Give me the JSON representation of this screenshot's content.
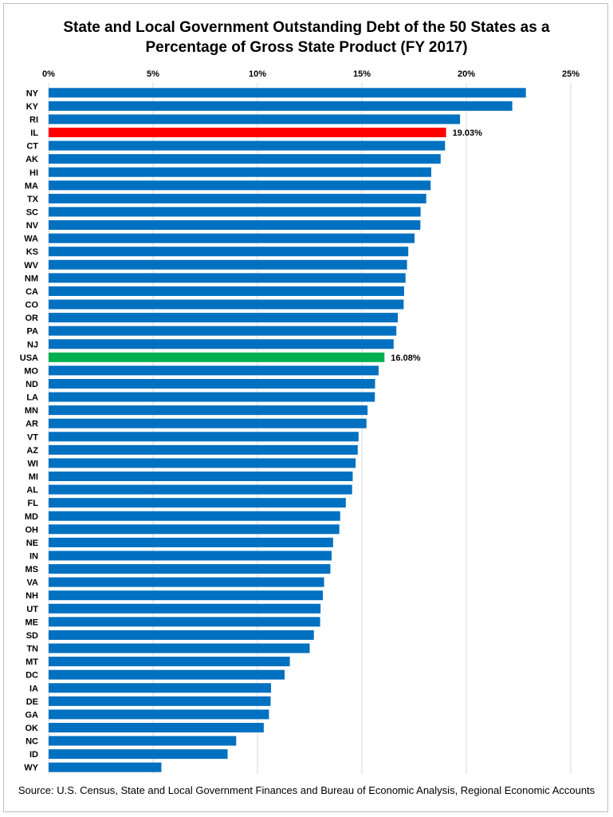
{
  "chart_data": {
    "type": "bar",
    "orientation": "horizontal",
    "title": "State and Local Government Outstanding Debt of the 50 States as a Percentage of Gross State Product (FY 2017)",
    "title_line1": "State and Local Government Outstanding Debt of the 50 States as a",
    "title_line2": "Percentage of Gross State Product (FY 2017)",
    "source": "Source: U.S. Census, State and Local Government Finances and Bureau of Economic Analysis, Regional Economic Accounts",
    "xlim": [
      0,
      25
    ],
    "x_ticks": [
      0,
      5,
      10,
      15,
      20,
      25
    ],
    "x_tick_labels": [
      "0%",
      "5%",
      "10%",
      "15%",
      "20%",
      "25%"
    ],
    "grid": true,
    "default_color": "#0070C0",
    "categories": [
      "NY",
      "KY",
      "RI",
      "IL",
      "CT",
      "AK",
      "HI",
      "MA",
      "TX",
      "SC",
      "NV",
      "WA",
      "KS",
      "WV",
      "NM",
      "CA",
      "CO",
      "OR",
      "PA",
      "NJ",
      "USA",
      "MO",
      "ND",
      "LA",
      "MN",
      "AR",
      "VT",
      "AZ",
      "WI",
      "MI",
      "AL",
      "FL",
      "MD",
      "OH",
      "NE",
      "IN",
      "MS",
      "VA",
      "NH",
      "UT",
      "ME",
      "SD",
      "TN",
      "MT",
      "DC",
      "IA",
      "DE",
      "GA",
      "OK",
      "NC",
      "ID",
      "WY"
    ],
    "values": [
      22.85,
      22.2,
      19.7,
      19.03,
      18.98,
      18.77,
      18.32,
      18.29,
      18.08,
      17.81,
      17.8,
      17.52,
      17.22,
      17.16,
      17.09,
      17.02,
      17.0,
      16.72,
      16.65,
      16.52,
      16.08,
      15.8,
      15.63,
      15.62,
      15.27,
      15.22,
      14.84,
      14.8,
      14.7,
      14.56,
      14.53,
      14.23,
      13.96,
      13.92,
      13.62,
      13.55,
      13.49,
      13.19,
      13.13,
      13.02,
      13.0,
      12.7,
      12.5,
      11.55,
      11.3,
      10.65,
      10.63,
      10.55,
      10.3,
      8.98,
      8.57,
      5.4
    ],
    "highlights": [
      {
        "category": "IL",
        "color": "#FF0000",
        "label": "19.03%"
      },
      {
        "category": "USA",
        "color": "#00B050",
        "label": "16.08%"
      }
    ]
  }
}
